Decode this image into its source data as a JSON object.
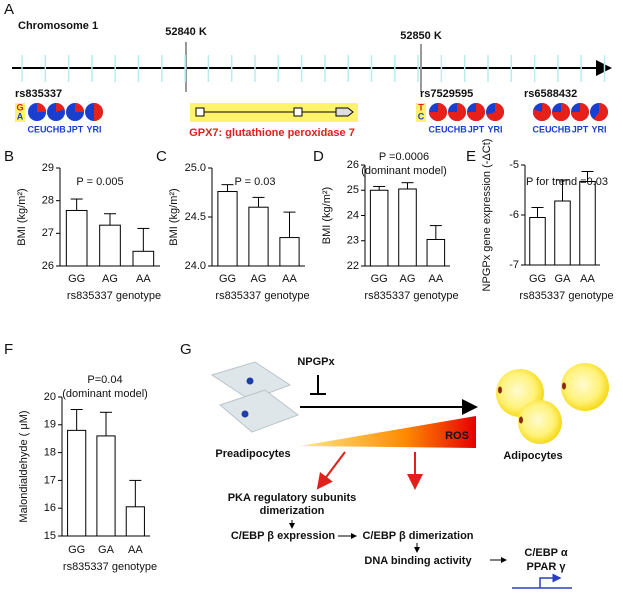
{
  "panel_labels": [
    "A",
    "B",
    "C",
    "D",
    "E",
    "F",
    "G"
  ],
  "panel_a": {
    "chromosome": "Chromosome 1",
    "positions": [
      "52840 K",
      "52850 K"
    ],
    "snps": [
      {
        "name": "rs835337",
        "alleles": [
          "G",
          "A"
        ],
        "populations": [
          "CEU",
          "CHB",
          "JPT",
          "YRI"
        ],
        "freq": [
          0.25,
          0.2,
          0.25,
          0.5
        ]
      },
      {
        "name": "rs7529595",
        "alleles": [
          "T",
          "C"
        ],
        "populations": [
          "CEU",
          "CHB",
          "JPT",
          "YRI"
        ],
        "freq": [
          0.75,
          0.75,
          0.75,
          0.7
        ]
      },
      {
        "name": "rs6588432",
        "alleles": null,
        "populations": [
          "CEU",
          "CHB",
          "JPT",
          "YRI"
        ],
        "freq": [
          0.8,
          0.75,
          0.75,
          0.6
        ]
      }
    ],
    "gene": "GPX7: glutathione peroxidase 7"
  },
  "chart_data": [
    {
      "type": "bar",
      "ylabel": "BMI (kg/m²)",
      "xlabel": "rs835337 genotype",
      "annotations": [
        "P = 0.005"
      ],
      "categories": [
        "GG",
        "AG",
        "AA"
      ],
      "values": [
        27.7,
        27.25,
        26.45
      ],
      "errors": [
        0.35,
        0.35,
        0.7
      ],
      "ylim": [
        26,
        29
      ],
      "yticks": [
        26,
        27,
        28,
        29
      ],
      "color": "#ffffff"
    },
    {
      "type": "bar",
      "ylabel": "BMI (kg/m²)",
      "xlabel": "rs835337 genotype",
      "annotations": [
        "P = 0.03"
      ],
      "categories": [
        "GG",
        "AG",
        "AA"
      ],
      "values": [
        24.76,
        24.6,
        24.29
      ],
      "errors": [
        0.07,
        0.1,
        0.26
      ],
      "ylim": [
        24,
        25
      ],
      "yticks": [
        {
          "value": 24,
          "label": "24.0"
        },
        {
          "value": 24.5,
          "label": "24.5"
        },
        {
          "value": 25,
          "label": "25.0"
        }
      ],
      "color": "#ffffff"
    },
    {
      "type": "bar",
      "ylabel": "BMI (kg/m²)",
      "xlabel": "rs835337 genotype",
      "annotations": [
        "P =0.0006",
        "(dominant model)"
      ],
      "categories": [
        "GG",
        "AG",
        "AA"
      ],
      "values": [
        25.0,
        25.05,
        23.05
      ],
      "errors": [
        0.15,
        0.25,
        0.55
      ],
      "ylim": [
        22,
        26
      ],
      "yticks": [
        22,
        23,
        24,
        25,
        26
      ],
      "color": "#ffffff"
    },
    {
      "type": "bar",
      "ylabel": "NPGPx gene expression (-ΔCt)",
      "xlabel": "rs835337 genotype",
      "annotations": [
        "P for trend =0.03"
      ],
      "categories": [
        "GG",
        "GA",
        "AA"
      ],
      "values": [
        -6.05,
        -5.72,
        -5.33
      ],
      "errors": [
        0.2,
        0.42,
        0.2
      ],
      "ylim": [
        -7,
        -5
      ],
      "yticks": [
        -7,
        -6,
        -5
      ],
      "color": "#ffffff"
    },
    {
      "type": "bar",
      "ylabel": "Malondialdehyde ( μM)",
      "xlabel": "rs835337 genotype",
      "annotations": [
        "P=0.04",
        "(dominant model)"
      ],
      "categories": [
        "GG",
        "GA",
        "AA"
      ],
      "values": [
        18.8,
        18.6,
        16.05
      ],
      "errors": [
        0.75,
        0.85,
        0.95
      ],
      "ylim": [
        15,
        20
      ],
      "yticks": [
        15,
        16,
        17,
        18,
        19,
        20
      ],
      "color": "#ffffff"
    }
  ],
  "panel_g": {
    "inhibitor": "NPGPx",
    "preadipocytes": "Preadipocytes",
    "adipocytes": "Adipocytes",
    "ros": "ROS",
    "pka": [
      "PKA regulatory subunits",
      "dimerization"
    ],
    "cebpb_expression": "C/EBP β expression",
    "cebpb_dimerization": "C/EBP β dimerization",
    "dna_binding": "DNA binding activity",
    "targets": [
      "C/EBP α",
      "PPAR γ"
    ]
  }
}
